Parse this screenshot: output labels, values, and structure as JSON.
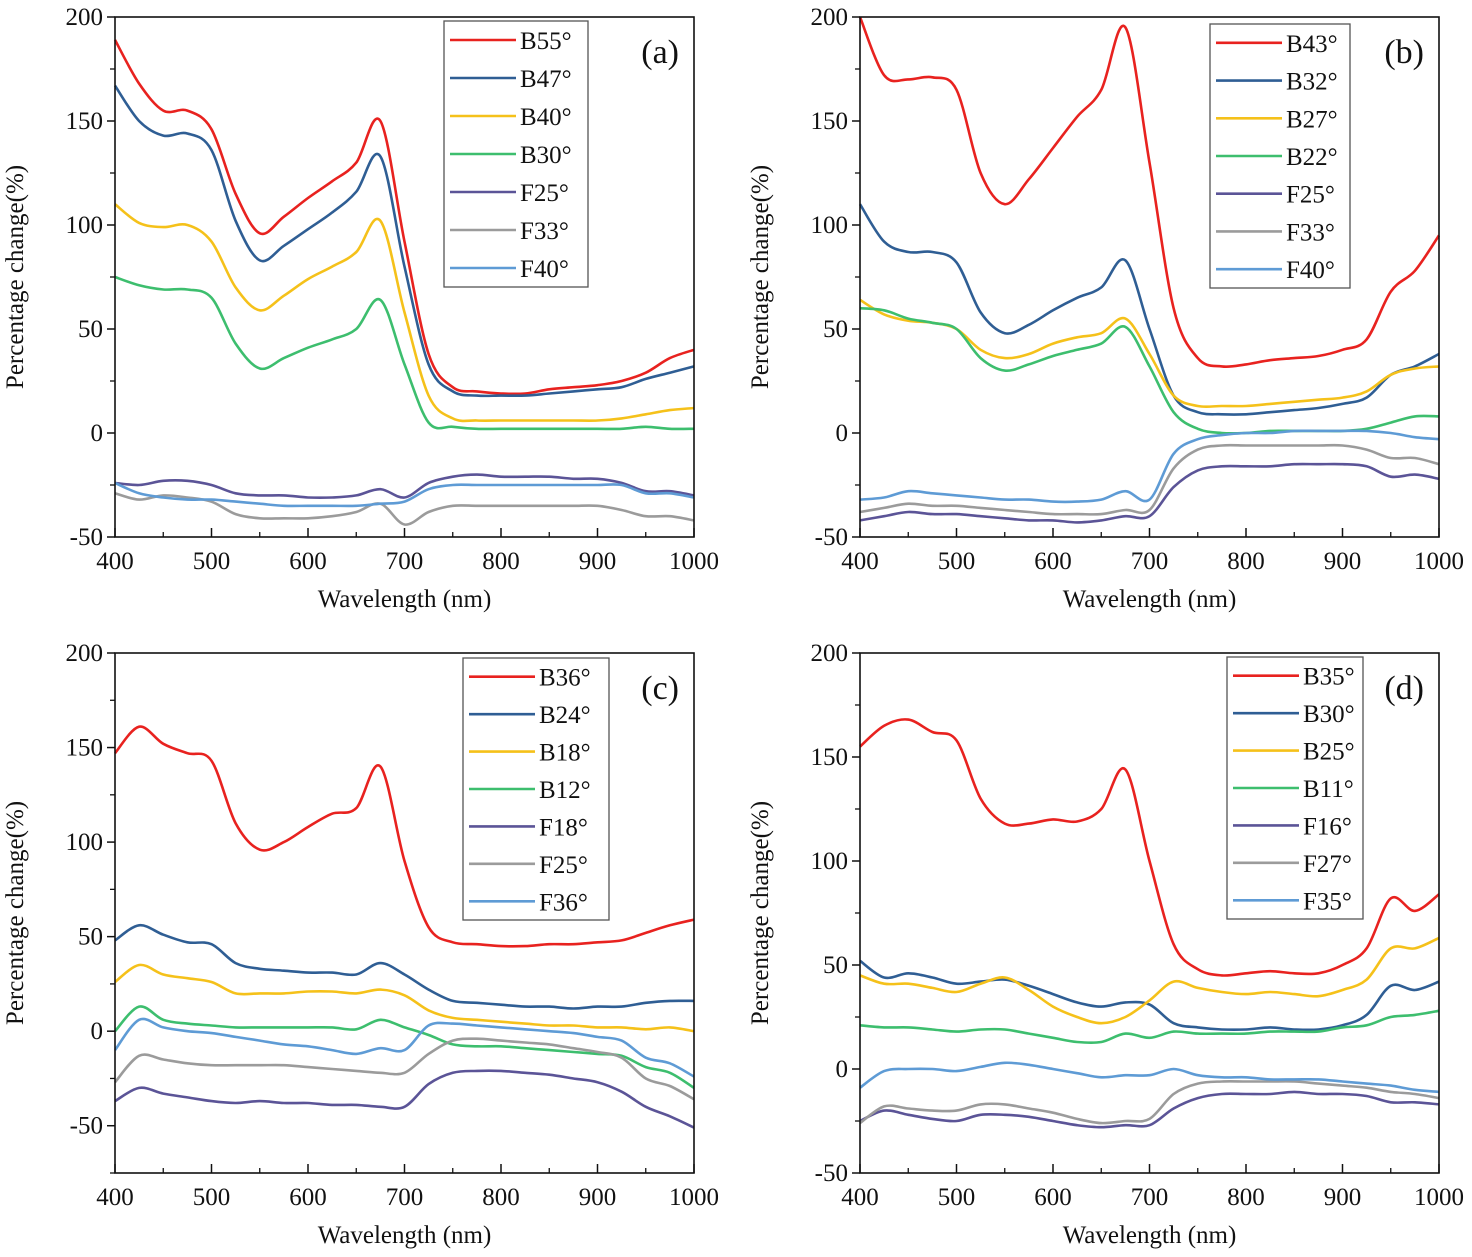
{
  "chart_data": [
    {
      "type": "line",
      "panel_label": "(a)",
      "xlabel": "Wavelength (nm)",
      "ylabel": "Percentage change(%)",
      "xlim": [
        400,
        1000
      ],
      "ylim": [
        -50,
        200
      ],
      "xticks": [
        400,
        500,
        600,
        700,
        800,
        900,
        1000
      ],
      "yticks": [
        -50,
        0,
        50,
        100,
        150,
        200
      ],
      "legend_position": "top-right",
      "grid": false,
      "x": [
        400,
        425,
        450,
        475,
        500,
        525,
        550,
        575,
        600,
        625,
        650,
        675,
        700,
        725,
        750,
        775,
        800,
        825,
        850,
        875,
        900,
        925,
        950,
        975,
        1000
      ],
      "series": [
        {
          "name": "B55°",
          "color": "#E8221F",
          "values": [
            189,
            168,
            155,
            155,
            146,
            115,
            96,
            104,
            113,
            121,
            130,
            150,
            92,
            38,
            22,
            20,
            19,
            19,
            21,
            22,
            23,
            25,
            29,
            36,
            40
          ]
        },
        {
          "name": "B47°",
          "color": "#2F5E94",
          "values": [
            167,
            150,
            143,
            144,
            136,
            102,
            83,
            90,
            98,
            106,
            116,
            133,
            80,
            33,
            20,
            18,
            18,
            18,
            19,
            20,
            21,
            22,
            26,
            29,
            32
          ]
        },
        {
          "name": "B40°",
          "color": "#F5C11A",
          "values": [
            110,
            101,
            99,
            100,
            92,
            70,
            59,
            66,
            74,
            80,
            87,
            102,
            58,
            18,
            7,
            6,
            6,
            6,
            6,
            6,
            6,
            7,
            9,
            11,
            12
          ]
        },
        {
          "name": "B30°",
          "color": "#3DBE6E",
          "values": [
            75,
            71,
            69,
            69,
            65,
            43,
            31,
            36,
            41,
            45,
            50,
            64,
            33,
            5,
            3,
            2,
            2,
            2,
            2,
            2,
            2,
            2,
            3,
            2,
            2
          ]
        },
        {
          "name": "F25°",
          "color": "#5B5497",
          "values": [
            -24,
            -25,
            -23,
            -23,
            -25,
            -29,
            -30,
            -30,
            -31,
            -31,
            -30,
            -27,
            -31,
            -24,
            -21,
            -20,
            -21,
            -21,
            -21,
            -22,
            -22,
            -24,
            -28,
            -28,
            -30
          ]
        },
        {
          "name": "F33°",
          "color": "#9B9B9B",
          "values": [
            -29,
            -32,
            -30,
            -31,
            -33,
            -39,
            -41,
            -41,
            -41,
            -40,
            -38,
            -34,
            -44,
            -38,
            -35,
            -35,
            -35,
            -35,
            -35,
            -35,
            -35,
            -37,
            -40,
            -40,
            -42
          ]
        },
        {
          "name": "F40°",
          "color": "#5E9BD5",
          "values": [
            -24,
            -29,
            -31,
            -32,
            -32,
            -33,
            -34,
            -35,
            -35,
            -35,
            -35,
            -34,
            -33,
            -27,
            -25,
            -25,
            -25,
            -25,
            -25,
            -25,
            -25,
            -25,
            -29,
            -29,
            -31
          ]
        }
      ]
    },
    {
      "type": "line",
      "panel_label": "(b)",
      "xlabel": "Wavelength (nm)",
      "ylabel": "Percentage change(%)",
      "xlim": [
        400,
        1000
      ],
      "ylim": [
        -50,
        200
      ],
      "xticks": [
        400,
        500,
        600,
        700,
        800,
        900,
        1000
      ],
      "yticks": [
        -50,
        0,
        50,
        100,
        150,
        200
      ],
      "legend_position": "top-right",
      "grid": false,
      "x": [
        400,
        425,
        450,
        475,
        500,
        525,
        550,
        575,
        600,
        625,
        650,
        675,
        700,
        725,
        750,
        775,
        800,
        825,
        850,
        875,
        900,
        925,
        950,
        975,
        1000
      ],
      "series": [
        {
          "name": "B43°",
          "color": "#E8221F",
          "values": [
            200,
            172,
            170,
            171,
            165,
            125,
            110,
            122,
            137,
            152,
            165,
            195,
            130,
            60,
            36,
            32,
            33,
            35,
            36,
            37,
            40,
            45,
            68,
            78,
            95
          ]
        },
        {
          "name": "B32°",
          "color": "#2F5E94",
          "values": [
            110,
            92,
            87,
            87,
            82,
            58,
            48,
            52,
            59,
            65,
            70,
            83,
            50,
            18,
            10,
            9,
            9,
            10,
            11,
            12,
            14,
            17,
            28,
            32,
            38
          ]
        },
        {
          "name": "B27°",
          "color": "#F5C11A",
          "values": [
            64,
            57,
            54,
            53,
            50,
            40,
            36,
            38,
            43,
            46,
            48,
            55,
            38,
            18,
            13,
            13,
            13,
            14,
            15,
            16,
            17,
            20,
            28,
            31,
            32
          ]
        },
        {
          "name": "B22°",
          "color": "#3DBE6E",
          "values": [
            60,
            59,
            55,
            53,
            50,
            36,
            30,
            33,
            37,
            40,
            43,
            51,
            32,
            10,
            2,
            0,
            0,
            1,
            1,
            1,
            1,
            2,
            5,
            8,
            8
          ]
        },
        {
          "name": "F25°",
          "color": "#5B5497",
          "values": [
            -42,
            -40,
            -38,
            -39,
            -39,
            -40,
            -41,
            -42,
            -42,
            -43,
            -42,
            -40,
            -40,
            -26,
            -18,
            -16,
            -16,
            -16,
            -15,
            -15,
            -15,
            -16,
            -21,
            -20,
            -22
          ]
        },
        {
          "name": "F33°",
          "color": "#9B9B9B",
          "values": [
            -38,
            -36,
            -34,
            -35,
            -35,
            -36,
            -37,
            -38,
            -39,
            -39,
            -39,
            -37,
            -37,
            -17,
            -8,
            -6,
            -6,
            -6,
            -6,
            -6,
            -6,
            -8,
            -12,
            -12,
            -15
          ]
        },
        {
          "name": "F40°",
          "color": "#5E9BD5",
          "values": [
            -32,
            -31,
            -28,
            -29,
            -30,
            -31,
            -32,
            -32,
            -33,
            -33,
            -32,
            -28,
            -32,
            -10,
            -3,
            -1,
            0,
            0,
            1,
            1,
            1,
            1,
            0,
            -2,
            -3
          ]
        }
      ]
    },
    {
      "type": "line",
      "panel_label": "(c)",
      "xlabel": "Wavelength (nm)",
      "ylabel": "Percentage change(%)",
      "xlim": [
        400,
        1000
      ],
      "ylim": [
        -75,
        200
      ],
      "xticks": [
        400,
        500,
        600,
        700,
        800,
        900,
        1000
      ],
      "yticks": [
        -50,
        0,
        50,
        100,
        150,
        200
      ],
      "legend_position": "top-right",
      "grid": false,
      "x": [
        400,
        425,
        450,
        475,
        500,
        525,
        550,
        575,
        600,
        625,
        650,
        675,
        700,
        725,
        750,
        775,
        800,
        825,
        850,
        875,
        900,
        925,
        950,
        975,
        1000
      ],
      "series": [
        {
          "name": "B36°",
          "color": "#E8221F",
          "values": [
            147,
            161,
            152,
            147,
            143,
            110,
            96,
            100,
            108,
            115,
            118,
            140,
            90,
            55,
            47,
            46,
            45,
            45,
            46,
            46,
            47,
            48,
            52,
            56,
            59
          ]
        },
        {
          "name": "B24°",
          "color": "#2F5E94",
          "values": [
            48,
            56,
            51,
            47,
            46,
            36,
            33,
            32,
            31,
            31,
            30,
            36,
            30,
            22,
            16,
            15,
            14,
            13,
            13,
            12,
            13,
            13,
            15,
            16,
            16
          ]
        },
        {
          "name": "B18°",
          "color": "#F5C11A",
          "values": [
            26,
            35,
            30,
            28,
            26,
            20,
            20,
            20,
            21,
            21,
            20,
            22,
            19,
            11,
            7,
            6,
            5,
            4,
            3,
            3,
            2,
            2,
            1,
            2,
            0
          ]
        },
        {
          "name": "B12°",
          "color": "#3DBE6E",
          "values": [
            0,
            13,
            6,
            4,
            3,
            2,
            2,
            2,
            2,
            2,
            1,
            6,
            2,
            -2,
            -7,
            -8,
            -8,
            -9,
            -10,
            -11,
            -12,
            -13,
            -19,
            -22,
            -30
          ]
        },
        {
          "name": "F18°",
          "color": "#5B5497",
          "values": [
            -37,
            -30,
            -33,
            -35,
            -37,
            -38,
            -37,
            -38,
            -38,
            -39,
            -39,
            -40,
            -40,
            -28,
            -22,
            -21,
            -21,
            -22,
            -23,
            -25,
            -27,
            -32,
            -40,
            -45,
            -51
          ]
        },
        {
          "name": "F25°",
          "color": "#9B9B9B",
          "values": [
            -27,
            -13,
            -15,
            -17,
            -18,
            -18,
            -18,
            -18,
            -19,
            -20,
            -21,
            -22,
            -22,
            -12,
            -5,
            -4,
            -5,
            -6,
            -7,
            -9,
            -11,
            -14,
            -25,
            -29,
            -36
          ]
        },
        {
          "name": "F36°",
          "color": "#5E9BD5",
          "values": [
            -10,
            6,
            2,
            0,
            -1,
            -3,
            -5,
            -7,
            -8,
            -10,
            -12,
            -9,
            -10,
            3,
            4,
            3,
            2,
            1,
            0,
            -1,
            -3,
            -5,
            -14,
            -17,
            -24
          ]
        }
      ]
    },
    {
      "type": "line",
      "panel_label": "(d)",
      "xlabel": "Wavelength (nm)",
      "ylabel": "Percentage change(%)",
      "xlim": [
        400,
        1000
      ],
      "ylim": [
        -50,
        200
      ],
      "xticks": [
        400,
        500,
        600,
        700,
        800,
        900,
        1000
      ],
      "yticks": [
        -50,
        0,
        50,
        100,
        150,
        200
      ],
      "legend_position": "top-right",
      "grid": false,
      "x": [
        400,
        425,
        450,
        475,
        500,
        525,
        550,
        575,
        600,
        625,
        650,
        675,
        700,
        725,
        750,
        775,
        800,
        825,
        850,
        875,
        900,
        925,
        950,
        975,
        1000
      ],
      "series": [
        {
          "name": "B35°",
          "color": "#E8221F",
          "values": [
            155,
            165,
            168,
            162,
            158,
            130,
            118,
            118,
            120,
            119,
            125,
            144,
            100,
            60,
            48,
            45,
            46,
            47,
            46,
            46,
            50,
            58,
            82,
            76,
            84
          ]
        },
        {
          "name": "B30°",
          "color": "#2F5E94",
          "values": [
            52,
            44,
            46,
            44,
            41,
            42,
            43,
            40,
            36,
            32,
            30,
            32,
            31,
            22,
            20,
            19,
            19,
            20,
            19,
            19,
            21,
            26,
            40,
            38,
            42
          ]
        },
        {
          "name": "B25°",
          "color": "#F5C11A",
          "values": [
            45,
            41,
            41,
            39,
            37,
            41,
            44,
            38,
            30,
            25,
            22,
            25,
            33,
            42,
            39,
            37,
            36,
            37,
            36,
            35,
            38,
            43,
            58,
            58,
            63
          ]
        },
        {
          "name": "B11°",
          "color": "#3DBE6E",
          "values": [
            21,
            20,
            20,
            19,
            18,
            19,
            19,
            17,
            15,
            13,
            13,
            17,
            15,
            18,
            17,
            17,
            17,
            18,
            18,
            18,
            20,
            21,
            25,
            26,
            28
          ]
        },
        {
          "name": "F16°",
          "color": "#5B5497",
          "values": [
            -25,
            -20,
            -22,
            -24,
            -25,
            -22,
            -22,
            -23,
            -25,
            -27,
            -28,
            -27,
            -27,
            -19,
            -14,
            -12,
            -12,
            -12,
            -11,
            -12,
            -12,
            -13,
            -16,
            -16,
            -17
          ]
        },
        {
          "name": "F27°",
          "color": "#9B9B9B",
          "values": [
            -26,
            -18,
            -19,
            -20,
            -20,
            -17,
            -17,
            -19,
            -21,
            -24,
            -26,
            -25,
            -24,
            -12,
            -7,
            -6,
            -6,
            -6,
            -6,
            -7,
            -8,
            -9,
            -11,
            -12,
            -14
          ]
        },
        {
          "name": "F35°",
          "color": "#5E9BD5",
          "values": [
            -9,
            -1,
            0,
            0,
            -1,
            1,
            3,
            2,
            0,
            -2,
            -4,
            -3,
            -3,
            0,
            -3,
            -4,
            -4,
            -5,
            -5,
            -5,
            -6,
            -7,
            -8,
            -10,
            -11
          ]
        }
      ]
    }
  ]
}
